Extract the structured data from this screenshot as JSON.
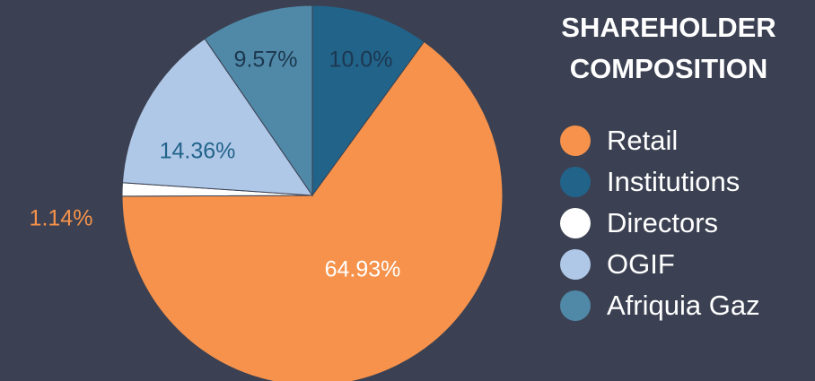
{
  "chart_data": {
    "type": "pie",
    "title": "SHAREHOLDER COMPOSITION",
    "categories": [
      "Retail",
      "Institutions",
      "Directors",
      "OGIF",
      "Afriquia Gaz"
    ],
    "values": [
      64.93,
      10,
      1.14,
      14.36,
      9.57
    ],
    "value_labels": [
      "64.93%",
      "10.0%",
      "1.14%",
      "14.36%",
      "9.57%"
    ],
    "colors": [
      "#f6924b",
      "#22638a",
      "#ffffff",
      "#b0c8e8",
      "#5089a8"
    ],
    "legend": "right"
  }
}
